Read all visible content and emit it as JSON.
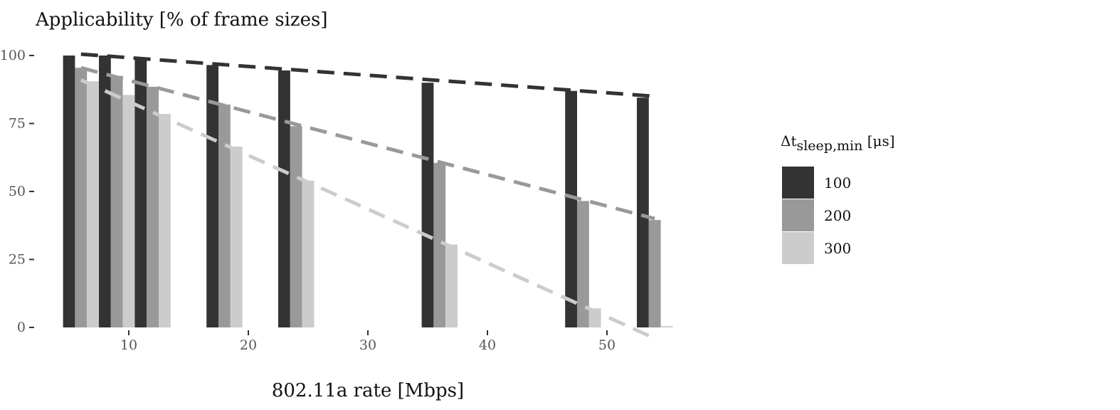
{
  "chart_data": {
    "type": "bar",
    "title": "Applicability [% of frame sizes]",
    "xlabel": "802.11a rate [Mbps]",
    "ylabel": "",
    "xlim": [
      3.5,
      56
    ],
    "ylim": [
      0,
      100
    ],
    "x_ticks": [
      10,
      20,
      30,
      40,
      50
    ],
    "y_ticks": [
      0,
      25,
      50,
      75,
      100
    ],
    "x": [
      6,
      9,
      12,
      18,
      24,
      36,
      48,
      54
    ],
    "series": [
      {
        "name": "100",
        "color": "#333333",
        "values": [
          100,
          100,
          98.5,
          96.5,
          94.5,
          90,
          87,
          84.5
        ]
      },
      {
        "name": "200",
        "color": "#999999",
        "values": [
          95.5,
          92.5,
          88.5,
          82,
          74,
          60.5,
          46.5,
          39.5
        ]
      },
      {
        "name": "300",
        "color": "#cccccc",
        "values": [
          90.5,
          85.5,
          78.5,
          66.5,
          54,
          30.5,
          7,
          0.5
        ]
      }
    ],
    "trend_lines": [
      {
        "series": "100",
        "start": [
          6,
          100.5
        ],
        "end": [
          54,
          85
        ],
        "style": "dashed"
      },
      {
        "series": "200",
        "start": [
          6,
          95.5
        ],
        "end": [
          54,
          40
        ],
        "style": "dashed"
      },
      {
        "series": "300",
        "start": [
          6,
          91
        ],
        "end": [
          54,
          -4
        ],
        "style": "dashed"
      }
    ],
    "grid": false,
    "legend": {
      "title_main": "Δt",
      "title_sub": "sleep,min",
      "title_unit": " [μs]",
      "position": "right"
    }
  }
}
